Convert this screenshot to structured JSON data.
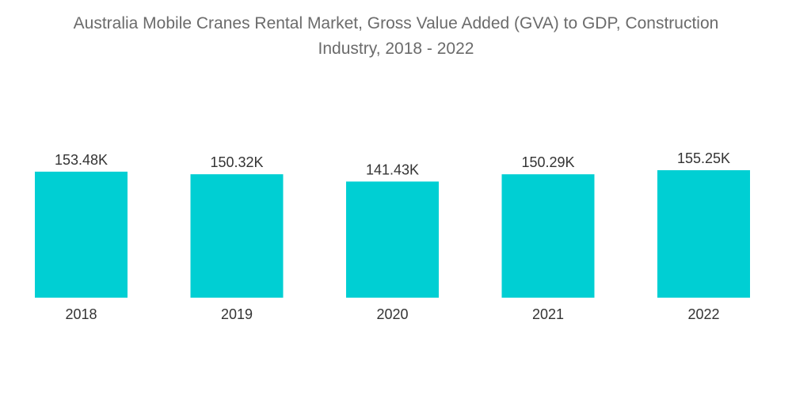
{
  "title_line1": "Australia Mobile Cranes Rental Market, Gross Value Added (GVA) to GDP, Construction",
  "title_line2": "Industry, 2018 - 2022",
  "colors": {
    "bar": "#00cfd3",
    "title": "#6b6b6b",
    "text": "#333333"
  },
  "chart_data": {
    "type": "bar",
    "title": "Australia Mobile Cranes Rental Market, Gross Value Added (GVA) to GDP, Construction Industry, 2018 - 2022",
    "categories": [
      "2018",
      "2019",
      "2020",
      "2021",
      "2022"
    ],
    "values": [
      153.48,
      150.32,
      141.43,
      150.29,
      155.25
    ],
    "labels": [
      "153.48K",
      "150.32K",
      "141.43K",
      "150.29K",
      "155.25K"
    ],
    "unit": "K",
    "xlabel": "",
    "ylabel": "",
    "ylim": [
      0,
      155.25
    ],
    "grid": false,
    "legend": "none"
  }
}
